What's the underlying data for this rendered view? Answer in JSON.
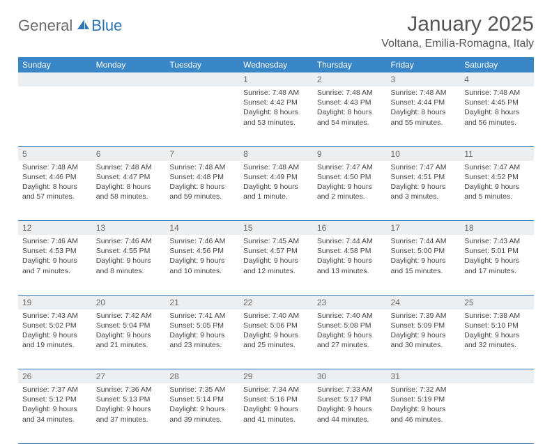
{
  "logo": {
    "general": "General",
    "blue": "Blue"
  },
  "title": "January 2025",
  "location": "Voltana, Emilia-Romagna, Italy",
  "colors": {
    "header_bg": "#3a87c7",
    "header_text": "#ffffff",
    "daynum_bg": "#eceff1",
    "daynum_text": "#6b6b6b",
    "body_text": "#444444",
    "rule": "#2e75b6",
    "logo_gray": "#6b6b6b",
    "logo_blue": "#2e75b6"
  },
  "day_headers": [
    "Sunday",
    "Monday",
    "Tuesday",
    "Wednesday",
    "Thursday",
    "Friday",
    "Saturday"
  ],
  "weeks": [
    [
      null,
      null,
      null,
      {
        "n": "1",
        "sr": "7:48 AM",
        "ss": "4:42 PM",
        "dl": "8 hours and 53 minutes."
      },
      {
        "n": "2",
        "sr": "7:48 AM",
        "ss": "4:43 PM",
        "dl": "8 hours and 54 minutes."
      },
      {
        "n": "3",
        "sr": "7:48 AM",
        "ss": "4:44 PM",
        "dl": "8 hours and 55 minutes."
      },
      {
        "n": "4",
        "sr": "7:48 AM",
        "ss": "4:45 PM",
        "dl": "8 hours and 56 minutes."
      }
    ],
    [
      {
        "n": "5",
        "sr": "7:48 AM",
        "ss": "4:46 PM",
        "dl": "8 hours and 57 minutes."
      },
      {
        "n": "6",
        "sr": "7:48 AM",
        "ss": "4:47 PM",
        "dl": "8 hours and 58 minutes."
      },
      {
        "n": "7",
        "sr": "7:48 AM",
        "ss": "4:48 PM",
        "dl": "8 hours and 59 minutes."
      },
      {
        "n": "8",
        "sr": "7:48 AM",
        "ss": "4:49 PM",
        "dl": "9 hours and 1 minute."
      },
      {
        "n": "9",
        "sr": "7:47 AM",
        "ss": "4:50 PM",
        "dl": "9 hours and 2 minutes."
      },
      {
        "n": "10",
        "sr": "7:47 AM",
        "ss": "4:51 PM",
        "dl": "9 hours and 3 minutes."
      },
      {
        "n": "11",
        "sr": "7:47 AM",
        "ss": "4:52 PM",
        "dl": "9 hours and 5 minutes."
      }
    ],
    [
      {
        "n": "12",
        "sr": "7:46 AM",
        "ss": "4:53 PM",
        "dl": "9 hours and 7 minutes."
      },
      {
        "n": "13",
        "sr": "7:46 AM",
        "ss": "4:55 PM",
        "dl": "9 hours and 8 minutes."
      },
      {
        "n": "14",
        "sr": "7:46 AM",
        "ss": "4:56 PM",
        "dl": "9 hours and 10 minutes."
      },
      {
        "n": "15",
        "sr": "7:45 AM",
        "ss": "4:57 PM",
        "dl": "9 hours and 12 minutes."
      },
      {
        "n": "16",
        "sr": "7:44 AM",
        "ss": "4:58 PM",
        "dl": "9 hours and 13 minutes."
      },
      {
        "n": "17",
        "sr": "7:44 AM",
        "ss": "5:00 PM",
        "dl": "9 hours and 15 minutes."
      },
      {
        "n": "18",
        "sr": "7:43 AM",
        "ss": "5:01 PM",
        "dl": "9 hours and 17 minutes."
      }
    ],
    [
      {
        "n": "19",
        "sr": "7:43 AM",
        "ss": "5:02 PM",
        "dl": "9 hours and 19 minutes."
      },
      {
        "n": "20",
        "sr": "7:42 AM",
        "ss": "5:04 PM",
        "dl": "9 hours and 21 minutes."
      },
      {
        "n": "21",
        "sr": "7:41 AM",
        "ss": "5:05 PM",
        "dl": "9 hours and 23 minutes."
      },
      {
        "n": "22",
        "sr": "7:40 AM",
        "ss": "5:06 PM",
        "dl": "9 hours and 25 minutes."
      },
      {
        "n": "23",
        "sr": "7:40 AM",
        "ss": "5:08 PM",
        "dl": "9 hours and 27 minutes."
      },
      {
        "n": "24",
        "sr": "7:39 AM",
        "ss": "5:09 PM",
        "dl": "9 hours and 30 minutes."
      },
      {
        "n": "25",
        "sr": "7:38 AM",
        "ss": "5:10 PM",
        "dl": "9 hours and 32 minutes."
      }
    ],
    [
      {
        "n": "26",
        "sr": "7:37 AM",
        "ss": "5:12 PM",
        "dl": "9 hours and 34 minutes."
      },
      {
        "n": "27",
        "sr": "7:36 AM",
        "ss": "5:13 PM",
        "dl": "9 hours and 37 minutes."
      },
      {
        "n": "28",
        "sr": "7:35 AM",
        "ss": "5:14 PM",
        "dl": "9 hours and 39 minutes."
      },
      {
        "n": "29",
        "sr": "7:34 AM",
        "ss": "5:16 PM",
        "dl": "9 hours and 41 minutes."
      },
      {
        "n": "30",
        "sr": "7:33 AM",
        "ss": "5:17 PM",
        "dl": "9 hours and 44 minutes."
      },
      {
        "n": "31",
        "sr": "7:32 AM",
        "ss": "5:19 PM",
        "dl": "9 hours and 46 minutes."
      },
      null
    ]
  ],
  "labels": {
    "sunrise": "Sunrise:",
    "sunset": "Sunset:",
    "daylight": "Daylight:"
  }
}
